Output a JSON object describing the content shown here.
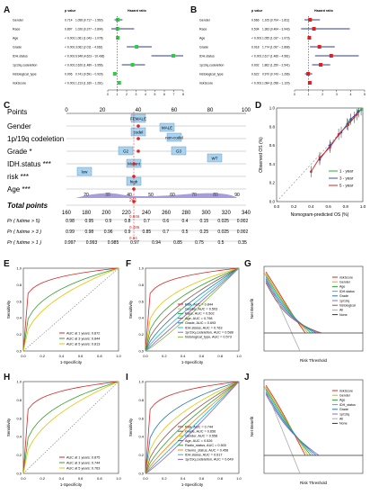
{
  "panel_labels": [
    "A",
    "B",
    "C",
    "D",
    "E",
    "F",
    "G",
    "H",
    "I",
    "J"
  ],
  "forest_a": {
    "headers": {
      "pvalue": "p value",
      "hr": "Hazard ratio"
    },
    "xlabel": "Hazard ratio",
    "ticks": [
      "0",
      "1",
      "2",
      "3",
      "4",
      "5",
      "6",
      "7",
      "8"
    ],
    "rows": [
      {
        "name": "Gender",
        "p": "0.714",
        "hr_text": "1.058 (0.717 ~ 1.560)",
        "hr": 1.058,
        "lo": 0.717,
        "hi": 1.56
      },
      {
        "name": "Race",
        "p": "0.897",
        "hr_text": "1.026 (0.377 ~ 2.804)",
        "hr": 1.026,
        "lo": 0.377,
        "hi": 2.804
      },
      {
        "name": "Age",
        "p": "< 0.001",
        "hr_text": "1.061 (1.043 ~ 1.078)",
        "hr": 1.061,
        "lo": 1.043,
        "hi": 1.078
      },
      {
        "name": "Grade",
        "p": "< 0.001",
        "hr_text": "3.062 (2.011 ~ 4.662)",
        "hr": 3.062,
        "lo": 2.011,
        "hi": 4.662
      },
      {
        "name": "IDH.status",
        "p": "< 0.001",
        "hr_text": "6.948 (4.623 ~ 10.436)",
        "hr": 6.948,
        "lo": 4.623,
        "hi": 10.436
      },
      {
        "name": "1p19q.codeletion",
        "p": "< 0.001",
        "hr_text": "2.626 (1.489 ~ 3.956)",
        "hr": 2.626,
        "lo": 1.489,
        "hi": 3.956
      },
      {
        "name": "histological_type",
        "p": "0.006",
        "hr_text": "0.741 (0.591 ~ 0.929)",
        "hr": 0.741,
        "lo": 0.591,
        "hi": 0.929
      },
      {
        "name": "riskScore",
        "p": "< 0.001",
        "hr_text": "1.213 (1.169 ~ 1.261)",
        "hr": 1.213,
        "lo": 1.169,
        "hi": 1.261
      }
    ]
  },
  "forest_b": {
    "headers": {
      "pvalue": "p value",
      "hr": "Hazard ratio"
    },
    "xlabel": "Hazard ratio",
    "ticks": [
      "0",
      "1",
      "2",
      "3",
      "4",
      "5"
    ],
    "rows": [
      {
        "name": "Gender",
        "p": "0.666",
        "hr_text": "1.105 (0.704 ~ 1.811)",
        "hr": 1.105,
        "lo": 0.704,
        "hi": 1.811
      },
      {
        "name": "Race",
        "p": "0.534",
        "hr_text": "1.383 (0.464 ~ 3.943)",
        "hr": 1.383,
        "lo": 0.464,
        "hi": 3.943
      },
      {
        "name": "Age",
        "p": "< 0.001",
        "hr_text": "1.055 (1.037 ~ 1.073)",
        "hr": 1.055,
        "lo": 1.037,
        "hi": 1.073
      },
      {
        "name": "Grade",
        "p": "0.018",
        "hr_text": "1.774 (1.097 ~ 2.868)",
        "hr": 1.774,
        "lo": 1.097,
        "hi": 2.868
      },
      {
        "name": "IDH.status",
        "p": "< 0.001",
        "hr_text": "2.617 (1.466 ~ 4.581)",
        "hr": 2.617,
        "lo": 1.466,
        "hi": 4.581
      },
      {
        "name": "1p19q.codeletion",
        "p": "0.002",
        "hr_text": "1.862 (1.250 ~ 2.541)",
        "hr": 1.862,
        "lo": 1.25,
        "hi": 2.541
      },
      {
        "name": "histological_type",
        "p": "0.622",
        "hr_text": "0.970 (0.743 ~ 1.266)",
        "hr": 0.97,
        "lo": 0.743,
        "hi": 1.266
      },
      {
        "name": "riskScore",
        "p": "< 0.001",
        "hr_text": "1.084 (1.058 ~ 1.120)",
        "hr": 1.084,
        "lo": 1.058,
        "hi": 1.12
      }
    ]
  },
  "nomogram": {
    "rows": [
      {
        "label": "Points",
        "style": "axis"
      },
      {
        "label": "Gender",
        "style": "plain"
      },
      {
        "label": "1p/19q codeletion",
        "style": "plain"
      },
      {
        "label": "Grade *",
        "style": "plain"
      },
      {
        "label": "IDH.status ***",
        "style": "plain"
      },
      {
        "label": "risk ***",
        "style": "plain"
      },
      {
        "label": "Age ***",
        "style": "plain"
      },
      {
        "label": "Total points",
        "style": "bold"
      },
      {
        "label": "Pr ( futime > 5)",
        "style": "italic"
      },
      {
        "label": "Pr ( futime > 3 )",
        "style": "italic"
      },
      {
        "label": "Pr ( futime > 1 )",
        "style": "italic"
      }
    ],
    "points_ticks": [
      "0",
      "20",
      "40",
      "60",
      "80",
      "100"
    ],
    "box_labels": [
      "FEMALE",
      "MALE",
      "codel",
      "non-codel",
      "G2",
      "G3",
      "Mutant",
      "WT",
      "low",
      "high"
    ],
    "age_ticks": [
      "20",
      "30",
      "40",
      "50",
      "60",
      "70",
      "80",
      "90"
    ],
    "total_ticks": [
      "160",
      "180",
      "200",
      "220",
      "240",
      "260",
      "280",
      "300",
      "320",
      "340"
    ],
    "total_value": "241",
    "pr5": [
      "0.98",
      "0.95",
      "0.9",
      "0.8",
      "0.7",
      "0.6",
      "0.4",
      "0.15",
      "0.025",
      "0.002"
    ],
    "pr3": [
      "0.99",
      "0.98",
      "0.96",
      "0.9",
      "0.85",
      "0.7",
      "0.5",
      "0.25",
      "0.025",
      "0.002"
    ],
    "pr1": [
      "0.997",
      "0.993",
      "0.985",
      "0.97",
      "0.94",
      "0.85",
      "0.75",
      "0.5",
      "0.35"
    ],
    "red_values": [
      "0.846",
      "0.486",
      "0.94"
    ]
  },
  "calibration": {
    "xlabel": "Nomogram-predicted OS (%)",
    "ylabel": "Observed OS (%)",
    "ticks": [
      "0.0",
      "0.2",
      "0.4",
      "0.6",
      "0.8",
      "1.0"
    ],
    "legend": [
      "1 - year",
      "3 - year",
      "5 - year"
    ],
    "colors": [
      "#2aa84a",
      "#3b4cc0",
      "#d62728"
    ],
    "series": [
      {
        "x": [
          0.82,
          0.9,
          0.95,
          0.98
        ],
        "y": [
          0.83,
          0.9,
          0.97,
          0.98
        ]
      },
      {
        "x": [
          0.5,
          0.62,
          0.75,
          0.86,
          0.95
        ],
        "y": [
          0.45,
          0.6,
          0.74,
          0.88,
          0.96
        ]
      },
      {
        "x": [
          0.4,
          0.5,
          0.62,
          0.72,
          0.83,
          0.93
        ],
        "y": [
          0.32,
          0.47,
          0.58,
          0.72,
          0.82,
          0.93
        ]
      }
    ]
  },
  "roc_e": {
    "xlabel": "1-Specificity",
    "ylabel": "Sensitivity",
    "ticks": [
      "0.0",
      "0.2",
      "0.4",
      "0.6",
      "0.8",
      "1.0"
    ],
    "legend": [
      "AUC at 1 years: 0.872",
      "AUC at 3 years: 0.844",
      "AUC at 5 years: 0.813"
    ],
    "colors": [
      "#d62728",
      "#2ca02c",
      "#e6c200"
    ]
  },
  "roc_f": {
    "xlabel": "1-Specificity",
    "ylabel": "Sensitivity",
    "ticks": [
      "0.0",
      "0.2",
      "0.4",
      "0.6",
      "0.8",
      "1.0"
    ],
    "legend": [
      "Risk, AUC = 0.844",
      "Gender, AUC = 0.503",
      "Race, AUC = 0.502",
      "Age, AUC = 0.798",
      "Grade, AUC = 0.693",
      "IDH.status, AUC = 0.763",
      "1p/19q.codeletion, AUC = 0.588",
      "histological_type, AUC = 0.573"
    ],
    "colors": [
      "#d62728",
      "#e6c200",
      "#2ca02c",
      "#8c564b",
      "#1f77b4",
      "#17becf",
      "#9467bd",
      "#7fbf3f"
    ]
  },
  "dca_g": {
    "xlabel": "Risk Threshold",
    "ylabel": "Net Benefit",
    "legend": [
      "riskScore",
      "Gender",
      "Age",
      "IDH.status",
      "Grade",
      "1p/19q",
      "histological",
      "All",
      "None"
    ],
    "colors": [
      "#d62728",
      "#e6a800",
      "#2ca02c",
      "#17becf",
      "#1f77b4",
      "#9467bd",
      "#8c564b",
      "#aaaaaa",
      "#333333"
    ]
  },
  "roc_h": {
    "xlabel": "1-Specificity",
    "ylabel": "Sensitivity",
    "ticks": [
      "0.0",
      "0.2",
      "0.4",
      "0.6",
      "0.8",
      "1.0"
    ],
    "legend": [
      "AUC at 1 years: 0.875",
      "AUC at 3 years: 0.744",
      "AUC at 5 years: 0.763"
    ],
    "colors": [
      "#d62728",
      "#2ca02c",
      "#e6c200"
    ]
  },
  "roc_i": {
    "xlabel": "1-Specificity",
    "ylabel": "Sensitivity",
    "ticks": [
      "0.0",
      "0.2",
      "0.4",
      "0.6",
      "0.8",
      "1.0"
    ],
    "legend": [
      "Risk, AUC = 0.744",
      "Grade, AUC = 0.656",
      "Gender, AUC = 0.558",
      "Age, AUC = 0.526",
      "Radio_status, AUC = 0.500",
      "Chemo_status, AUC = 0.458",
      "IDH.status, AUC = 0.617",
      "1p/19q.codeletion, AUC = 0.649"
    ],
    "colors": [
      "#d62728",
      "#1f77b4",
      "#e6c200",
      "#8c564b",
      "#2ca02c",
      "#ff7f0e",
      "#17becf",
      "#9467bd"
    ]
  },
  "dca_j": {
    "xlabel": "Risk Threshold",
    "ylabel": "Net Benefit",
    "legend": [
      "riskScore",
      "Gender",
      "Age",
      "IDH_status",
      "Grade",
      "1p/19q",
      "All",
      "None"
    ],
    "colors": [
      "#d62728",
      "#e6a800",
      "#2ca02c",
      "#17becf",
      "#1f77b4",
      "#9467bd",
      "#aaaaaa",
      "#333333"
    ]
  }
}
